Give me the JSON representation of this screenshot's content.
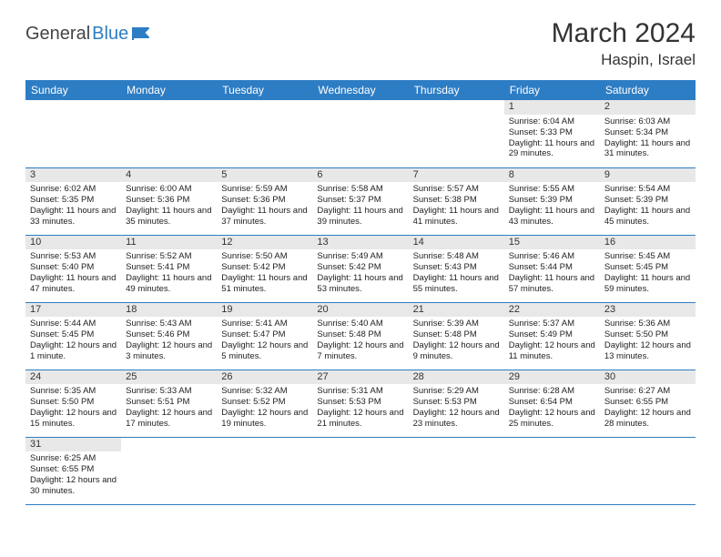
{
  "brand": {
    "part1": "General",
    "part2": "Blue",
    "color1": "#444444",
    "color2": "#2d7dc4"
  },
  "title": "March 2024",
  "location": "Haspin, Israel",
  "header_bg": "#2d7dc4",
  "header_fg": "#ffffff",
  "daynum_bg": "#e8e8e8",
  "cell_divider": "#2d7dc4",
  "weekdays": [
    "Sunday",
    "Monday",
    "Tuesday",
    "Wednesday",
    "Thursday",
    "Friday",
    "Saturday"
  ],
  "weeks": [
    [
      null,
      null,
      null,
      null,
      null,
      {
        "n": "1",
        "sr": "6:04 AM",
        "ss": "5:33 PM",
        "dl": "11 hours and 29 minutes."
      },
      {
        "n": "2",
        "sr": "6:03 AM",
        "ss": "5:34 PM",
        "dl": "11 hours and 31 minutes."
      }
    ],
    [
      {
        "n": "3",
        "sr": "6:02 AM",
        "ss": "5:35 PM",
        "dl": "11 hours and 33 minutes."
      },
      {
        "n": "4",
        "sr": "6:00 AM",
        "ss": "5:36 PM",
        "dl": "11 hours and 35 minutes."
      },
      {
        "n": "5",
        "sr": "5:59 AM",
        "ss": "5:36 PM",
        "dl": "11 hours and 37 minutes."
      },
      {
        "n": "6",
        "sr": "5:58 AM",
        "ss": "5:37 PM",
        "dl": "11 hours and 39 minutes."
      },
      {
        "n": "7",
        "sr": "5:57 AM",
        "ss": "5:38 PM",
        "dl": "11 hours and 41 minutes."
      },
      {
        "n": "8",
        "sr": "5:55 AM",
        "ss": "5:39 PM",
        "dl": "11 hours and 43 minutes."
      },
      {
        "n": "9",
        "sr": "5:54 AM",
        "ss": "5:39 PM",
        "dl": "11 hours and 45 minutes."
      }
    ],
    [
      {
        "n": "10",
        "sr": "5:53 AM",
        "ss": "5:40 PM",
        "dl": "11 hours and 47 minutes."
      },
      {
        "n": "11",
        "sr": "5:52 AM",
        "ss": "5:41 PM",
        "dl": "11 hours and 49 minutes."
      },
      {
        "n": "12",
        "sr": "5:50 AM",
        "ss": "5:42 PM",
        "dl": "11 hours and 51 minutes."
      },
      {
        "n": "13",
        "sr": "5:49 AM",
        "ss": "5:42 PM",
        "dl": "11 hours and 53 minutes."
      },
      {
        "n": "14",
        "sr": "5:48 AM",
        "ss": "5:43 PM",
        "dl": "11 hours and 55 minutes."
      },
      {
        "n": "15",
        "sr": "5:46 AM",
        "ss": "5:44 PM",
        "dl": "11 hours and 57 minutes."
      },
      {
        "n": "16",
        "sr": "5:45 AM",
        "ss": "5:45 PM",
        "dl": "11 hours and 59 minutes."
      }
    ],
    [
      {
        "n": "17",
        "sr": "5:44 AM",
        "ss": "5:45 PM",
        "dl": "12 hours and 1 minute."
      },
      {
        "n": "18",
        "sr": "5:43 AM",
        "ss": "5:46 PM",
        "dl": "12 hours and 3 minutes."
      },
      {
        "n": "19",
        "sr": "5:41 AM",
        "ss": "5:47 PM",
        "dl": "12 hours and 5 minutes."
      },
      {
        "n": "20",
        "sr": "5:40 AM",
        "ss": "5:48 PM",
        "dl": "12 hours and 7 minutes."
      },
      {
        "n": "21",
        "sr": "5:39 AM",
        "ss": "5:48 PM",
        "dl": "12 hours and 9 minutes."
      },
      {
        "n": "22",
        "sr": "5:37 AM",
        "ss": "5:49 PM",
        "dl": "12 hours and 11 minutes."
      },
      {
        "n": "23",
        "sr": "5:36 AM",
        "ss": "5:50 PM",
        "dl": "12 hours and 13 minutes."
      }
    ],
    [
      {
        "n": "24",
        "sr": "5:35 AM",
        "ss": "5:50 PM",
        "dl": "12 hours and 15 minutes."
      },
      {
        "n": "25",
        "sr": "5:33 AM",
        "ss": "5:51 PM",
        "dl": "12 hours and 17 minutes."
      },
      {
        "n": "26",
        "sr": "5:32 AM",
        "ss": "5:52 PM",
        "dl": "12 hours and 19 minutes."
      },
      {
        "n": "27",
        "sr": "5:31 AM",
        "ss": "5:53 PM",
        "dl": "12 hours and 21 minutes."
      },
      {
        "n": "28",
        "sr": "5:29 AM",
        "ss": "5:53 PM",
        "dl": "12 hours and 23 minutes."
      },
      {
        "n": "29",
        "sr": "6:28 AM",
        "ss": "6:54 PM",
        "dl": "12 hours and 25 minutes."
      },
      {
        "n": "30",
        "sr": "6:27 AM",
        "ss": "6:55 PM",
        "dl": "12 hours and 28 minutes."
      }
    ],
    [
      {
        "n": "31",
        "sr": "6:25 AM",
        "ss": "6:55 PM",
        "dl": "12 hours and 30 minutes."
      },
      null,
      null,
      null,
      null,
      null,
      null
    ]
  ],
  "labels": {
    "sunrise": "Sunrise:",
    "sunset": "Sunset:",
    "daylight": "Daylight:"
  }
}
